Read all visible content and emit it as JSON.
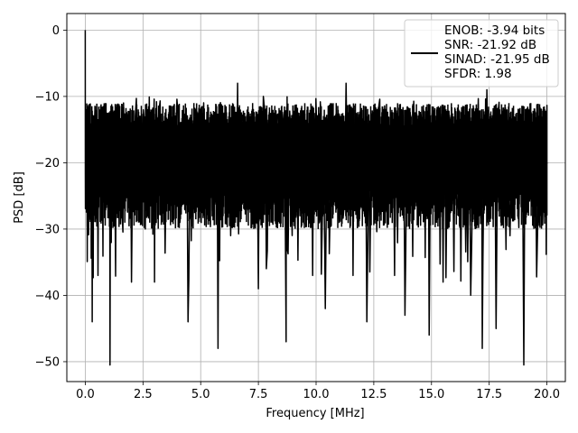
{
  "chart_data": {
    "type": "line",
    "title": "",
    "xlabel": "Frequency [MHz]",
    "ylabel": "PSD [dB]",
    "xlim": [
      -0.8,
      20.8
    ],
    "ylim": [
      -53,
      2.5
    ],
    "xticks": [
      0.0,
      2.5,
      5.0,
      7.5,
      10.0,
      12.5,
      15.0,
      17.5,
      20.0
    ],
    "xtick_labels": [
      "0.0",
      "2.5",
      "5.0",
      "7.5",
      "10.0",
      "12.5",
      "15.0",
      "17.5",
      "20.0"
    ],
    "yticks": [
      0,
      -10,
      -20,
      -30,
      -40,
      -50
    ],
    "ytick_labels": [
      "0",
      "−10",
      "−20",
      "−30",
      "−40",
      "−50"
    ],
    "grid": true,
    "legend_position": "top-right",
    "legend_lines": [
      "ENOB: -3.94 bits",
      "SNR: -21.92 dB",
      "SINAD: -21.95 dB",
      "SFDR: 1.98"
    ],
    "series": [
      {
        "color": "#000000",
        "description": "dense noise-like PSD trace, band mostly between -12 and -26 dB",
        "x": [
          0.0,
          0.02,
          0.05,
          0.1,
          0.2,
          0.3,
          0.4,
          0.55,
          0.7,
          0.85,
          1.0,
          1.07,
          1.2,
          1.4,
          1.6,
          1.8,
          2.0,
          2.3,
          2.6,
          2.9,
          3.0,
          3.2,
          3.5,
          3.8,
          4.1,
          4.45,
          4.7,
          5.0,
          5.3,
          5.5,
          5.75,
          6.0,
          6.3,
          6.6,
          6.9,
          7.2,
          7.5,
          7.8,
          8.1,
          8.4,
          8.7,
          8.75,
          9.0,
          9.3,
          9.6,
          9.85,
          10.1,
          10.4,
          10.7,
          11.0,
          11.3,
          11.6,
          11.9,
          12.2,
          12.5,
          12.8,
          13.1,
          13.4,
          13.7,
          13.85,
          14.1,
          14.4,
          14.7,
          14.9,
          15.2,
          15.5,
          15.8,
          16.1,
          16.4,
          16.7,
          17.0,
          17.2,
          17.4,
          17.8,
          18.1,
          18.4,
          18.7,
          19.0,
          19.3,
          19.6,
          19.9,
          20.0
        ],
        "y": [
          0.0,
          -22.0,
          -12.0,
          -25.0,
          -16.0,
          -44.0,
          -14.0,
          -37.0,
          -18.0,
          -26.0,
          -15.0,
          -50.5,
          -20.0,
          -13.0,
          -28.0,
          -15.0,
          -38.0,
          -13.0,
          -30.0,
          -18.0,
          -38.0,
          -12.0,
          -22.0,
          -16.0,
          -29.0,
          -44.0,
          -14.0,
          -27.0,
          -16.0,
          -28.0,
          -48.0,
          -13.0,
          -31.0,
          -8.0,
          -25.0,
          -17.0,
          -39.0,
          -14.0,
          -29.0,
          -15.0,
          -47.0,
          -33.0,
          -13.0,
          -28.0,
          -17.0,
          -37.0,
          -14.0,
          -42.0,
          -13.0,
          -29.0,
          -8.0,
          -37.0,
          -16.0,
          -44.0,
          -14.0,
          -27.0,
          -17.0,
          -37.0,
          -12.0,
          -43.0,
          -15.0,
          -29.0,
          -16.0,
          -46.0,
          -13.0,
          -38.0,
          -17.0,
          -27.0,
          -14.0,
          -40.0,
          -15.0,
          -48.0,
          -9.0,
          -45.0,
          -13.0,
          -31.0,
          -16.0,
          -50.5,
          -14.0,
          -30.0,
          -12.0,
          -20.0
        ],
        "line_width": 1.5
      }
    ]
  }
}
